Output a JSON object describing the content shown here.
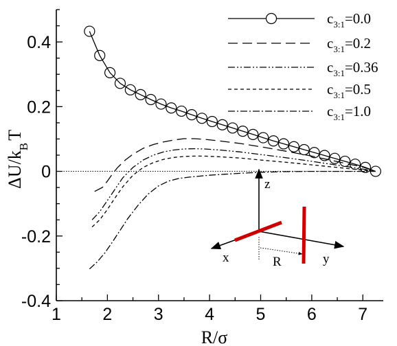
{
  "chart_data": {
    "type": "line",
    "xlabel": "R/σ",
    "ylabel_main": "ΔU/k",
    "ylabel_sub": "B",
    "ylabel_end": "T",
    "xlim": [
      1,
      7.4
    ],
    "ylim": [
      -0.4,
      0.5
    ],
    "xticks": [
      1,
      2,
      3,
      4,
      5,
      6,
      7
    ],
    "yticks": [
      -0.4,
      -0.2,
      0,
      0.2,
      0.4
    ],
    "ytick_labels": [
      "-0.4",
      "-0.2",
      "0",
      "0.2",
      "0.4"
    ],
    "minor_x_step": 0.5,
    "minor_y_step": 0.05,
    "grid": false,
    "legend_position": "top-right",
    "reference_line": {
      "y": 0,
      "style": "dotted"
    },
    "series": [
      {
        "label_main": "c",
        "label_sub": "3:1",
        "label_value": "=0.0",
        "dash": "",
        "markers": "circle",
        "x": [
          1.65,
          1.85,
          2.05,
          2.25,
          2.45,
          2.65,
          2.85,
          3.05,
          3.25,
          3.45,
          3.65,
          3.85,
          4.05,
          4.25,
          4.45,
          4.65,
          4.85,
          5.05,
          5.25,
          5.45,
          5.65,
          5.85,
          6.05,
          6.25,
          6.45,
          6.65,
          6.85,
          7.05,
          7.25
        ],
        "y": [
          0.433,
          0.358,
          0.305,
          0.272,
          0.252,
          0.237,
          0.222,
          0.208,
          0.196,
          0.186,
          0.175,
          0.164,
          0.154,
          0.144,
          0.134,
          0.124,
          0.114,
          0.104,
          0.094,
          0.085,
          0.076,
          0.067,
          0.058,
          0.049,
          0.04,
          0.031,
          0.022,
          0.012,
          0.0
        ]
      },
      {
        "label_main": "c",
        "label_sub": "3:1",
        "label_value": "=0.2",
        "dash": "14 7",
        "markers": "none",
        "x": [
          1.75,
          1.9,
          2.0,
          2.1,
          2.2,
          2.35,
          2.5,
          2.7,
          2.9,
          3.1,
          3.3,
          3.5,
          3.7,
          3.9,
          4.2,
          4.6,
          5.0,
          5.5,
          6.0,
          6.5,
          7.0,
          7.25
        ],
        "y": [
          -0.062,
          -0.05,
          -0.03,
          -0.008,
          0.012,
          0.035,
          0.053,
          0.071,
          0.083,
          0.091,
          0.097,
          0.101,
          0.101,
          0.099,
          0.094,
          0.086,
          0.076,
          0.062,
          0.047,
          0.03,
          0.013,
          0.0
        ]
      },
      {
        "label_main": "c",
        "label_sub": "3:1",
        "label_value": "=0.36",
        "dash": "10 3 2 3 2 3",
        "markers": "none",
        "x": [
          1.7,
          1.85,
          2.0,
          2.15,
          2.3,
          2.5,
          2.7,
          2.9,
          3.1,
          3.3,
          3.5,
          3.7,
          3.9,
          4.2,
          4.6,
          5.0,
          5.5,
          6.0,
          6.5,
          7.0,
          7.25
        ],
        "y": [
          -0.15,
          -0.125,
          -0.09,
          -0.055,
          -0.02,
          0.012,
          0.035,
          0.05,
          0.06,
          0.066,
          0.069,
          0.07,
          0.069,
          0.066,
          0.06,
          0.052,
          0.042,
          0.031,
          0.019,
          0.007,
          0.0
        ]
      },
      {
        "label_main": "c",
        "label_sub": "3:1",
        "label_value": "=0.5",
        "dash": "5 4",
        "markers": "none",
        "x": [
          1.7,
          1.85,
          2.0,
          2.15,
          2.3,
          2.5,
          2.7,
          2.9,
          3.1,
          3.3,
          3.5,
          3.7,
          3.9,
          4.2,
          4.6,
          5.0,
          5.5,
          6.0,
          6.5,
          7.0,
          7.25
        ],
        "y": [
          -0.172,
          -0.15,
          -0.118,
          -0.082,
          -0.048,
          -0.012,
          0.012,
          0.027,
          0.037,
          0.043,
          0.046,
          0.047,
          0.047,
          0.045,
          0.041,
          0.035,
          0.028,
          0.02,
          0.012,
          0.004,
          0.0
        ]
      },
      {
        "label_main": "c",
        "label_sub": "3:1",
        "label_value": "=1.0",
        "dash": "10 3 2 3",
        "markers": "none",
        "x": [
          1.65,
          1.8,
          1.95,
          2.1,
          2.25,
          2.4,
          2.6,
          2.8,
          3.0,
          3.2,
          3.4,
          3.6,
          3.8,
          4.0,
          4.3,
          4.6,
          5.0,
          5.5,
          6.0,
          6.5,
          7.0,
          7.25
        ],
        "y": [
          -0.302,
          -0.28,
          -0.252,
          -0.218,
          -0.182,
          -0.146,
          -0.105,
          -0.07,
          -0.045,
          -0.03,
          -0.022,
          -0.018,
          -0.015,
          -0.012,
          -0.009,
          -0.006,
          -0.003,
          -0.001,
          0.0,
          0.0,
          0.0,
          0.0
        ]
      }
    ],
    "inset": {
      "axis_labels": {
        "z": "z",
        "x": "x",
        "y": "y",
        "distance": "R"
      },
      "rod_color": "#cc0000"
    }
  }
}
